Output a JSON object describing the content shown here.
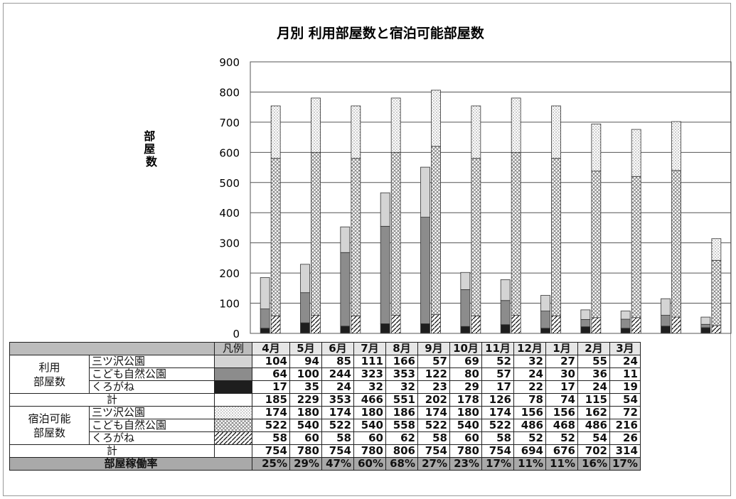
{
  "chart_data": {
    "type": "bar",
    "title": "月別 利用部屋数と宿泊可能部屋数",
    "ylabel": "部屋数",
    "ylim": [
      0,
      900
    ],
    "yticks": [
      0,
      100,
      200,
      300,
      400,
      500,
      600,
      700,
      800,
      900
    ],
    "categories": [
      "4月",
      "5月",
      "6月",
      "7月",
      "8月",
      "9月",
      "10月",
      "11月",
      "12月",
      "1月",
      "2月",
      "3月"
    ],
    "series": [
      {
        "stack": "利用部屋数",
        "name": "三ツ沢公園",
        "values": [
          104,
          94,
          85,
          111,
          166,
          57,
          69,
          52,
          32,
          27,
          55,
          24
        ]
      },
      {
        "stack": "利用部屋数",
        "name": "こども自然公園",
        "values": [
          64,
          100,
          244,
          323,
          353,
          122,
          80,
          57,
          24,
          30,
          36,
          11
        ]
      },
      {
        "stack": "利用部屋数",
        "name": "くろがね",
        "values": [
          17,
          35,
          24,
          32,
          32,
          23,
          29,
          17,
          22,
          17,
          24,
          19
        ]
      },
      {
        "stack": "宿泊可能部屋数",
        "name": "三ツ沢公園",
        "values": [
          174,
          180,
          174,
          180,
          186,
          174,
          180,
          174,
          156,
          156,
          162,
          72
        ]
      },
      {
        "stack": "宿泊可能部屋数",
        "name": "こども自然公園",
        "values": [
          522,
          540,
          522,
          540,
          558,
          522,
          540,
          522,
          486,
          468,
          486,
          216
        ]
      },
      {
        "stack": "宿泊可能部屋数",
        "name": "くろがね",
        "values": [
          58,
          60,
          58,
          60,
          62,
          58,
          60,
          58,
          52,
          52,
          54,
          26
        ]
      }
    ],
    "used_total": [
      185,
      229,
      353,
      466,
      551,
      202,
      178,
      126,
      78,
      74,
      115,
      54
    ],
    "capacity_total": [
      754,
      780,
      754,
      780,
      806,
      754,
      780,
      754,
      694,
      676,
      702,
      314
    ],
    "occupancy_rate": [
      "25%",
      "29%",
      "47%",
      "60%",
      "68%",
      "27%",
      "23%",
      "17%",
      "11%",
      "11%",
      "16%",
      "17%"
    ],
    "grid": true
  },
  "table": {
    "legend_header": "凡例",
    "group_used": "利用\n部屋数",
    "group_capacity": "宿泊可能\n部屋数",
    "total_label": "計",
    "rate_label": "部屋稼働率"
  },
  "colors": {
    "mitsuzawa_used": "#d4d4d4",
    "kodomo_used": "#8c8c8c",
    "kurogane_used": "#1e1e1e"
  }
}
